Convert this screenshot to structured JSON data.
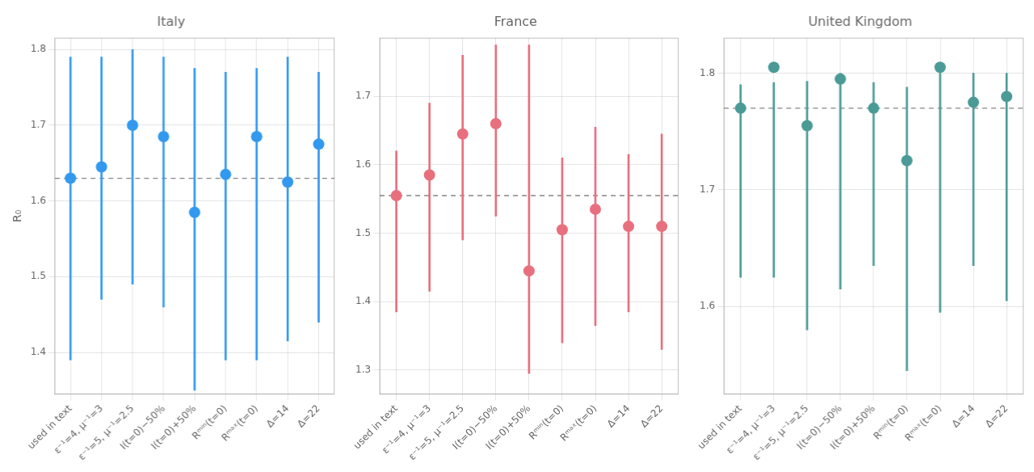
{
  "chart_data": [
    {
      "type": "scatter",
      "title": "Italy",
      "color": "#3399ee",
      "ylabel": "R₀",
      "categories": [
        "used in text",
        "ε⁻¹=4, μ⁻¹=3",
        "ε⁻¹=5, μ⁻¹=2.5",
        "I(t=0)−50%",
        "I(t=0)+50%",
        "Rᵐⁱⁿ(t=0)",
        "Rᵐᵃˣ(t=0)",
        "Δ=14",
        "Δ=22"
      ],
      "values": [
        1.63,
        1.645,
        1.7,
        1.685,
        1.585,
        1.635,
        1.685,
        1.625,
        1.675
      ],
      "lower": [
        1.39,
        1.47,
        1.49,
        1.46,
        1.35,
        1.39,
        1.39,
        1.415,
        1.44
      ],
      "upper": [
        1.79,
        1.79,
        1.8,
        1.79,
        1.775,
        1.77,
        1.775,
        1.79,
        1.77
      ],
      "baseline": 1.63,
      "ylim": [
        1.345,
        1.815
      ],
      "yticks": [
        1.4,
        1.5,
        1.6,
        1.7,
        1.8
      ],
      "grid": true
    },
    {
      "type": "scatter",
      "title": "France",
      "color": "#e8707e",
      "categories": [
        "used in text",
        "ε⁻¹=4, μ⁻¹=3",
        "ε⁻¹=5, μ⁻¹=2.5",
        "I(t=0)−50%",
        "I(t=0)+50%",
        "Rᵐⁱⁿ(t=0)",
        "Rᵐᵃˣ(t=0)",
        "Δ=14",
        "Δ=22"
      ],
      "values": [
        1.555,
        1.585,
        1.645,
        1.66,
        1.445,
        1.505,
        1.535,
        1.51,
        1.51
      ],
      "lower": [
        1.385,
        1.415,
        1.49,
        1.525,
        1.295,
        1.34,
        1.365,
        1.385,
        1.33
      ],
      "upper": [
        1.62,
        1.69,
        1.76,
        1.775,
        1.775,
        1.61,
        1.655,
        1.615,
        1.645
      ],
      "baseline": 1.555,
      "ylim": [
        1.265,
        1.785
      ],
      "yticks": [
        1.3,
        1.4,
        1.5,
        1.6,
        1.7
      ],
      "grid": true
    },
    {
      "type": "scatter",
      "title": "United Kingdom",
      "color": "#4a9a96",
      "categories": [
        "used in text",
        "ε⁻¹=4, μ⁻¹=3",
        "ε⁻¹=5, μ⁻¹=2.5",
        "I(t=0)−50%",
        "I(t=0)+50%",
        "Rᵐⁱⁿ(t=0)",
        "Rᵐᵃˣ(t=0)",
        "Δ=14",
        "Δ=22"
      ],
      "values": [
        1.77,
        1.805,
        1.755,
        1.795,
        1.77,
        1.725,
        1.805,
        1.775,
        1.78
      ],
      "lower": [
        1.625,
        1.625,
        1.58,
        1.615,
        1.635,
        1.545,
        1.595,
        1.635,
        1.605
      ],
      "upper": [
        1.79,
        1.792,
        1.793,
        1.8,
        1.792,
        1.788,
        1.8,
        1.8,
        1.8
      ],
      "baseline": 1.77,
      "ylim": [
        1.525,
        1.83
      ],
      "yticks": [
        1.6,
        1.7,
        1.8
      ],
      "grid": true
    }
  ]
}
